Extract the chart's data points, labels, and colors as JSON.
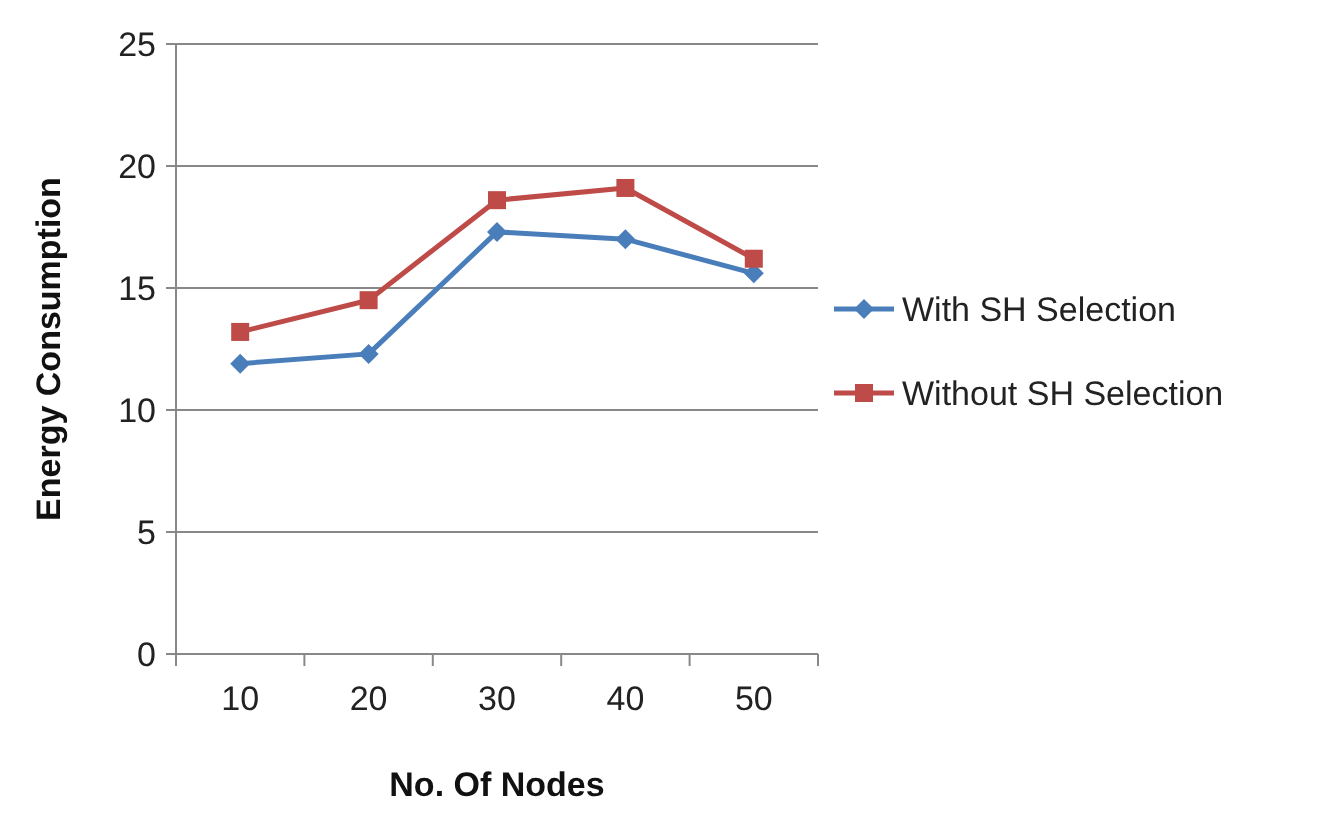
{
  "chart_data": {
    "type": "line",
    "xlabel": "No. Of Nodes",
    "ylabel": "Energy Consumption",
    "categories": [
      "10",
      "20",
      "30",
      "40",
      "50"
    ],
    "series": [
      {
        "name": "With  SH Selection",
        "color": "#4a7ebb",
        "values": [
          11.9,
          12.3,
          17.3,
          17.0,
          15.6
        ],
        "marker": "diamond"
      },
      {
        "name": "Without SH Selection",
        "color": "#be4b48",
        "values": [
          13.2,
          14.5,
          18.6,
          19.1,
          16.2
        ],
        "marker": "square"
      }
    ],
    "ylim": [
      0,
      25
    ],
    "yticks": [
      0,
      5,
      10,
      15,
      20,
      25
    ],
    "grid": "y",
    "legend": "right",
    "line_style": "solid"
  }
}
